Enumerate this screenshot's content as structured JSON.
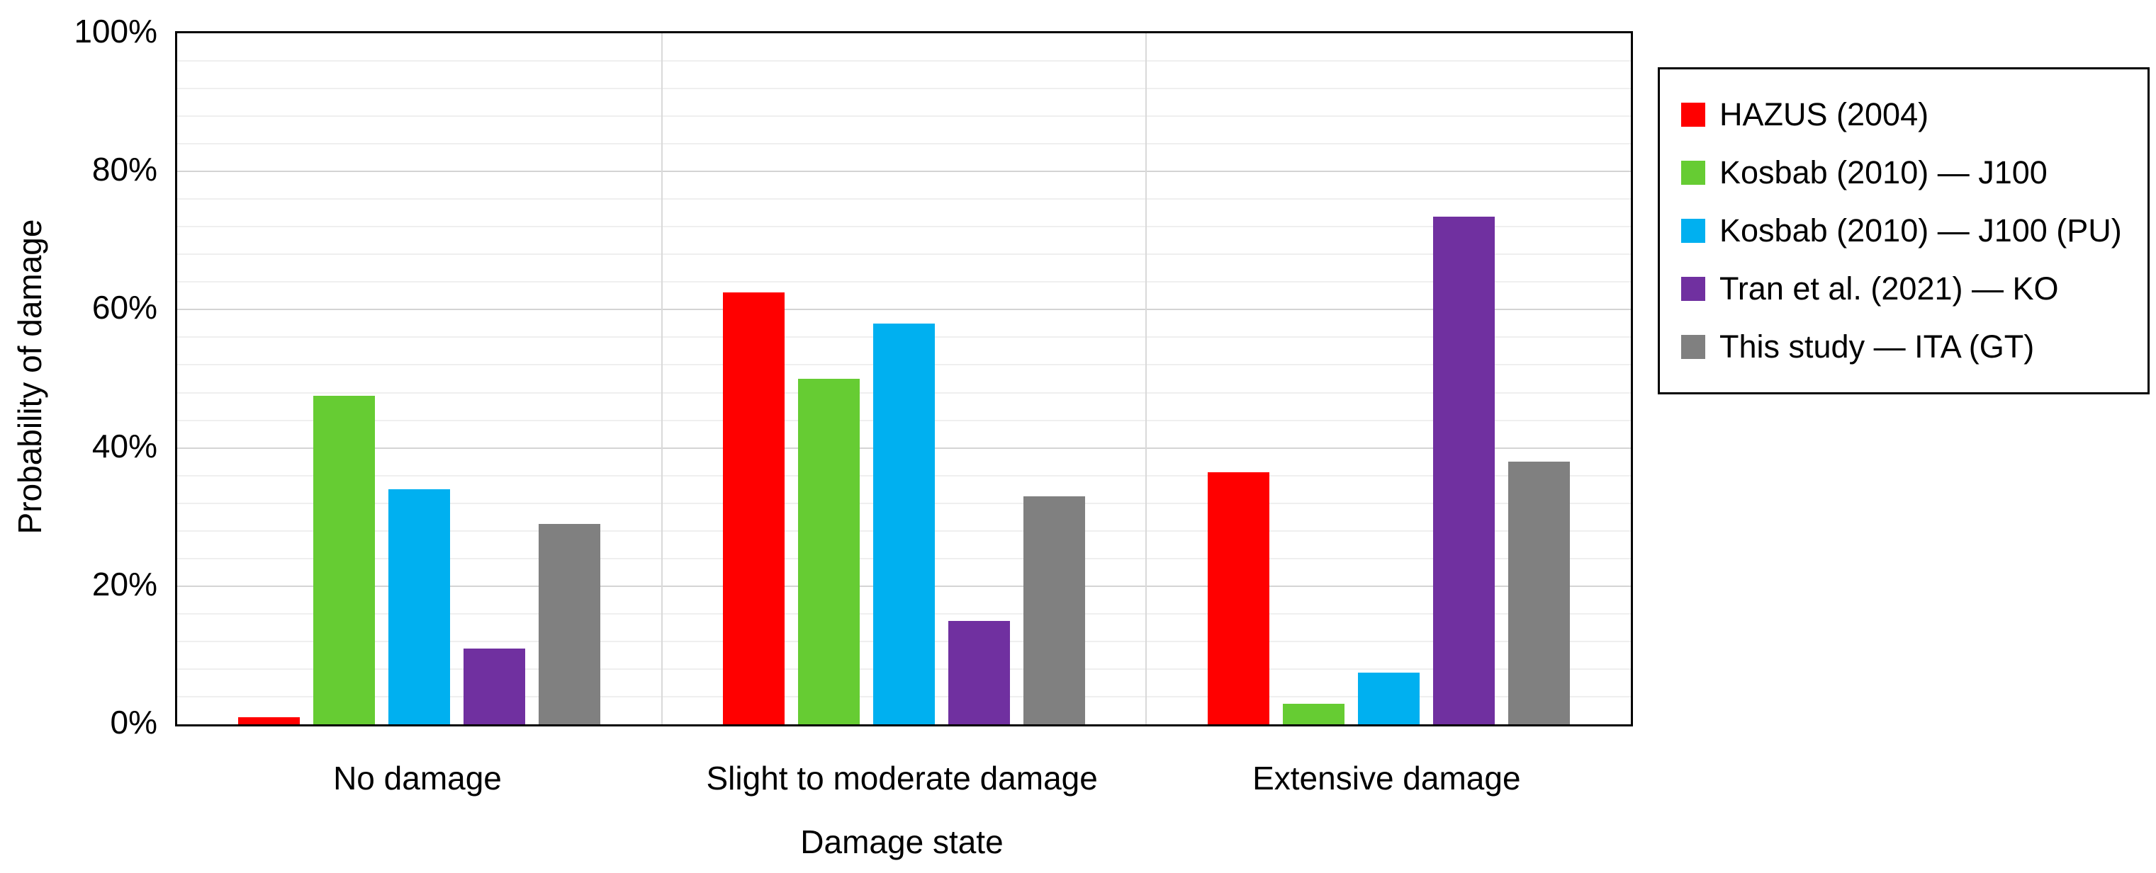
{
  "chart_data": {
    "type": "bar",
    "title": "",
    "categories": [
      "No damage",
      "Slight to moderate damage",
      "Extensive damage"
    ],
    "series": [
      {
        "name": "HAZUS (2004)",
        "color": "#ff0000",
        "values": [
          1,
          62.5,
          36.5
        ]
      },
      {
        "name": "Kosbab (2010) — J100",
        "color": "#66cc33",
        "values": [
          47.5,
          50,
          3
        ]
      },
      {
        "name": "Kosbab (2010) — J100 (PU)",
        "color": "#00b0f0",
        "values": [
          34,
          58,
          7.5
        ]
      },
      {
        "name": "Tran et al. (2021) — KO",
        "color": "#7030a0",
        "values": [
          11,
          15,
          73.5
        ]
      },
      {
        "name": "This study — ITA (GT)",
        "color": "#808080",
        "values": [
          29,
          33,
          38
        ]
      }
    ],
    "xlabel": "Damage state",
    "ylabel": "Probability of damage",
    "ylim": [
      0,
      100
    ],
    "y_tick_labels": [
      "0%",
      "20%",
      "40%",
      "60%",
      "80%",
      "100%"
    ],
    "y_major_unit": 20,
    "y_minor_unit": 4,
    "grid": "horizontal: minor every 4%, major every 20%; vertical separators between categories",
    "legend_position": "right",
    "plot_border_color": "#000000"
  }
}
